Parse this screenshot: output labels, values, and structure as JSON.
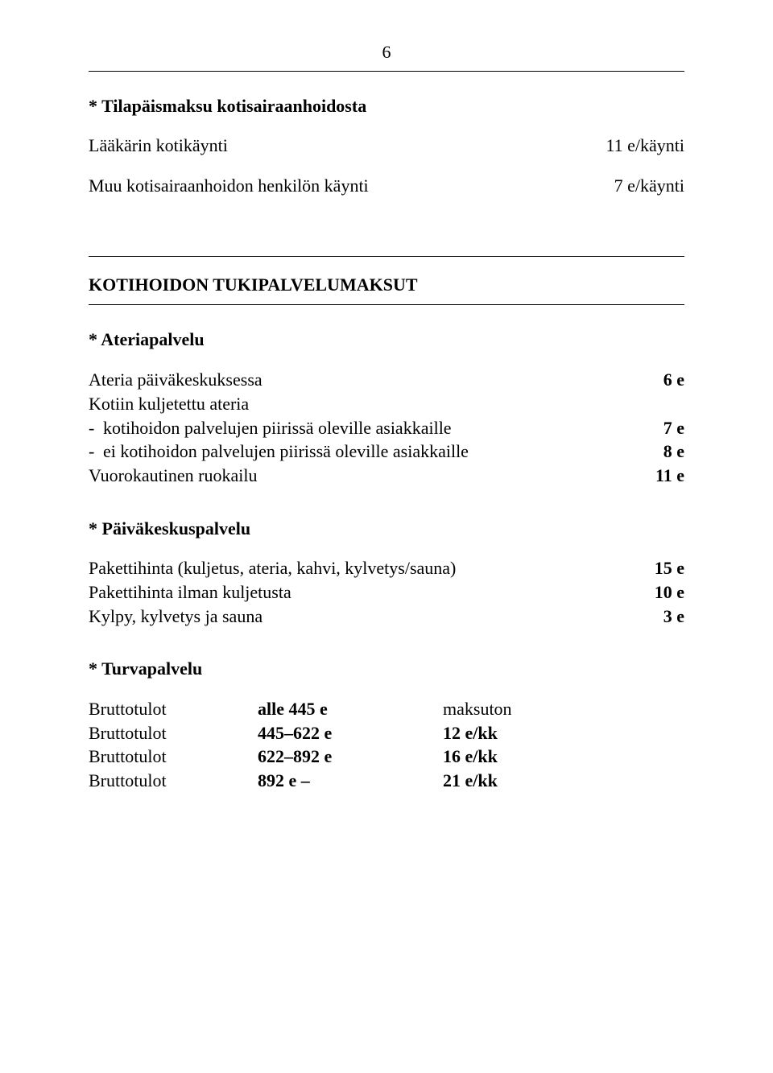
{
  "page": {
    "number": "6"
  },
  "section_tilapais": {
    "heading": "* Tilapäismaksu kotisairaanhoidosta",
    "rows": [
      {
        "label": "Lääkärin kotikäynti",
        "value": "11 e/käynti"
      },
      {
        "label": "Muu kotisairaanhoidon henkilön käynti",
        "value": "7 e/käynti"
      }
    ]
  },
  "section_kotihoidon": {
    "heading": "KOTIHOIDON TUKIPALVELUMAKSUT"
  },
  "section_ateria": {
    "heading": "* Ateriapalvelu",
    "rows": [
      {
        "label": "Ateria päiväkeskuksessa",
        "value": "6 e"
      }
    ],
    "sub_heading": "Kotiin kuljetettu ateria",
    "sub_rows": [
      {
        "label": "kotihoidon palvelujen piirissä oleville asiakkaille",
        "value": "7 e"
      },
      {
        "label": "ei kotihoidon palvelujen piirissä oleville asiakkaille",
        "value": "8 e"
      }
    ],
    "rows2": [
      {
        "label": "Vuorokautinen ruokailu",
        "value": "11 e"
      }
    ]
  },
  "section_paivakeskus": {
    "heading": "* Päiväkeskuspalvelu",
    "rows": [
      {
        "label": "Pakettihinta (kuljetus, ateria, kahvi, kylvetys/sauna)",
        "value": "15 e"
      },
      {
        "label": "Pakettihinta ilman kuljetusta",
        "value": "10 e"
      },
      {
        "label": "Kylpy, kylvetys ja sauna",
        "value": "3 e"
      }
    ]
  },
  "section_turva": {
    "heading": "* Turvapalvelu",
    "rows": [
      {
        "c1": "Bruttotulot",
        "c2": "alle  445 e",
        "c3": "maksuton"
      },
      {
        "c1": "Bruttotulot",
        "c2": "445–622 e",
        "c3": "12 e/kk"
      },
      {
        "c1": "Bruttotulot",
        "c2": "622–892 e",
        "c3": "16 e/kk"
      },
      {
        "c1": "Bruttotulot",
        "c2": "892 e –",
        "c3": "21 e/kk"
      }
    ]
  },
  "strings": {
    "dash": "-"
  }
}
